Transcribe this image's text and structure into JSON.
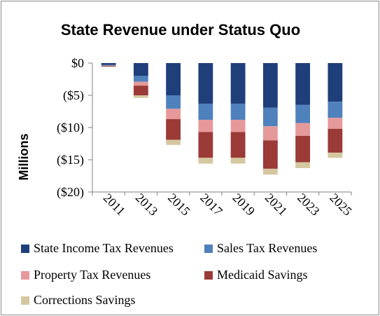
{
  "chart_data": {
    "type": "bar",
    "stacked": true,
    "title": "State Revenue under Status Quo",
    "xlabel": "",
    "ylabel": "Millions",
    "ylim": [
      -20,
      0
    ],
    "y_ticks": [
      0,
      -5,
      -10,
      -15,
      -20
    ],
    "y_tick_labels": [
      "$0",
      "($5)",
      "($10)",
      "($15)",
      "($20)"
    ],
    "categories": [
      "2011",
      "2013",
      "2015",
      "2017",
      "2019",
      "2021",
      "2023",
      "2025"
    ],
    "grid": false,
    "legend_position": "bottom",
    "series": [
      {
        "name": "State Income Tax Revenues",
        "color": "#1f3f7a",
        "values": [
          -0.3,
          -2.0,
          -5.0,
          -6.3,
          -6.3,
          -6.9,
          -6.5,
          -6.0
        ]
      },
      {
        "name": "Sales Tax Revenues",
        "color": "#4f81bd",
        "values": [
          -0.1,
          -0.9,
          -2.1,
          -2.5,
          -2.5,
          -2.9,
          -2.8,
          -2.5
        ]
      },
      {
        "name": "Property Tax Revenues",
        "color": "#e6999a",
        "values": [
          -0.05,
          -0.6,
          -1.6,
          -1.9,
          -1.9,
          -2.2,
          -2.0,
          -1.7
        ]
      },
      {
        "name": "Medicaid Savings",
        "color": "#9b3a37",
        "values": [
          -0.1,
          -1.5,
          -3.2,
          -4.0,
          -4.0,
          -4.4,
          -4.1,
          -3.7
        ]
      },
      {
        "name": "Corrections Savings",
        "color": "#d5c8a0",
        "values": [
          -0.05,
          -0.4,
          -0.8,
          -0.9,
          -0.9,
          -0.9,
          -0.9,
          -0.8
        ]
      }
    ]
  }
}
